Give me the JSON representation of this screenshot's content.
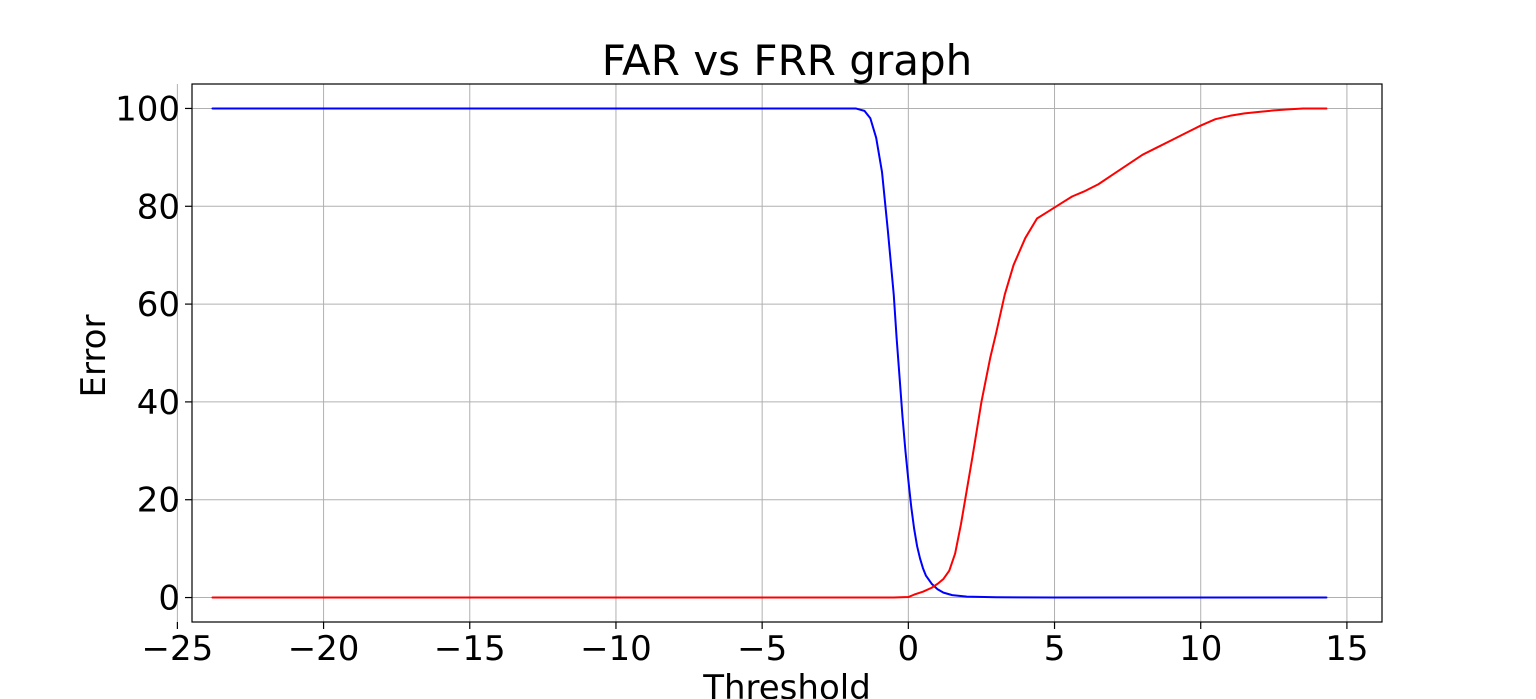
{
  "chart_data": {
    "type": "line",
    "title": "FAR vs FRR graph",
    "xlabel": "Threshold",
    "ylabel": "Error",
    "xlim": [
      -24.5,
      16.2
    ],
    "ylim": [
      -5,
      105
    ],
    "xticks": [
      -25,
      -20,
      -15,
      -10,
      -5,
      0,
      5,
      10,
      15
    ],
    "xtick_labels": [
      "−25",
      "−20",
      "−15",
      "−10",
      "−5",
      "0",
      "5",
      "10",
      "15"
    ],
    "yticks": [
      0,
      20,
      40,
      60,
      80,
      100
    ],
    "ytick_labels": [
      "0",
      "20",
      "40",
      "60",
      "80",
      "100"
    ],
    "grid": true,
    "legend": "none",
    "series": [
      {
        "color": "#0000ff",
        "x": [
          -23.8,
          -5,
          -2.5,
          -1.8,
          -1.5,
          -1.3,
          -1.1,
          -0.9,
          -0.7,
          -0.5,
          -0.4,
          -0.3,
          -0.2,
          -0.1,
          0,
          0.1,
          0.2,
          0.3,
          0.4,
          0.5,
          0.6,
          0.8,
          1.0,
          1.2,
          1.5,
          2.0,
          3.0,
          5.0,
          10.0,
          14.3
        ],
        "y": [
          100,
          100,
          100,
          100,
          99.5,
          98,
          94,
          87,
          75,
          62,
          53,
          45,
          37,
          30,
          24,
          18.5,
          14,
          10.5,
          8,
          6,
          4.5,
          2.8,
          1.7,
          1.0,
          0.5,
          0.2,
          0.05,
          0,
          0,
          0
        ]
      },
      {
        "color": "#ff0000",
        "x": [
          -23.8,
          -5,
          -0.5,
          0,
          0.2,
          0.5,
          0.8,
          1.0,
          1.2,
          1.4,
          1.6,
          1.8,
          2.0,
          2.2,
          2.5,
          2.8,
          3.0,
          3.3,
          3.6,
          4.0,
          4.4,
          4.8,
          5.2,
          5.6,
          6.0,
          6.5,
          7.0,
          7.5,
          8.0,
          8.5,
          9.0,
          9.5,
          10.0,
          10.5,
          11.0,
          11.5,
          12.0,
          12.5,
          13.0,
          13.5,
          14.3
        ],
        "y": [
          0,
          0,
          0,
          0.1,
          0.6,
          1.2,
          2.0,
          2.8,
          3.8,
          5.5,
          9,
          15,
          22,
          29,
          40,
          49,
          54,
          62,
          68,
          73.5,
          77.5,
          79,
          80.5,
          82,
          83,
          84.5,
          86.5,
          88.5,
          90.5,
          92,
          93.5,
          95,
          96.5,
          97.8,
          98.5,
          99,
          99.3,
          99.6,
          99.8,
          100,
          100
        ]
      }
    ]
  }
}
